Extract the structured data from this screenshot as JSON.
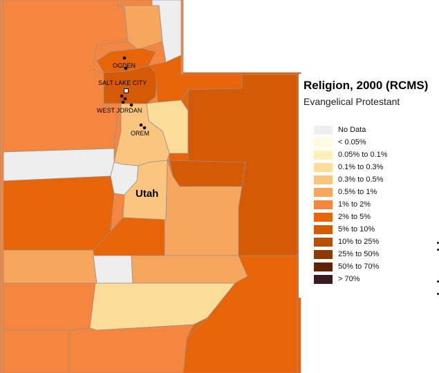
{
  "map": {
    "state_label": "Utah",
    "cities": [
      {
        "name": "OGDEN"
      },
      {
        "name": "SALT LAKE CITY"
      },
      {
        "name": "WEST JORDAN"
      },
      {
        "name": "OREM"
      }
    ]
  },
  "legend": {
    "title": "Religion, 2000 (RCMS)",
    "subtitle": "Evangelical Protestant",
    "items": [
      {
        "label": "No Data",
        "color": "#eeeeee"
      },
      {
        "label": "< 0.05%",
        "color": "#fffbdc"
      },
      {
        "label": "0.05% to 0.1%",
        "color": "#fdf0b8"
      },
      {
        "label": "0.1% to 0.3%",
        "color": "#fbdc98"
      },
      {
        "label": "0.3% to 0.5%",
        "color": "#fac57f"
      },
      {
        "label": "0.5% to 1%",
        "color": "#f7a65d"
      },
      {
        "label": "1% to 2%",
        "color": "#f5863f"
      },
      {
        "label": "2% to 5%",
        "color": "#e86409"
      },
      {
        "label": "5% to 10%",
        "color": "#d55a06"
      },
      {
        "label": "10% to 25%",
        "color": "#b84f09"
      },
      {
        "label": "25% to 50%",
        "color": "#8f3a05"
      },
      {
        "label": "50% to 70%",
        "color": "#5e2305"
      },
      {
        "label": "> 70%",
        "color": "#3a1a1e"
      }
    ]
  }
}
